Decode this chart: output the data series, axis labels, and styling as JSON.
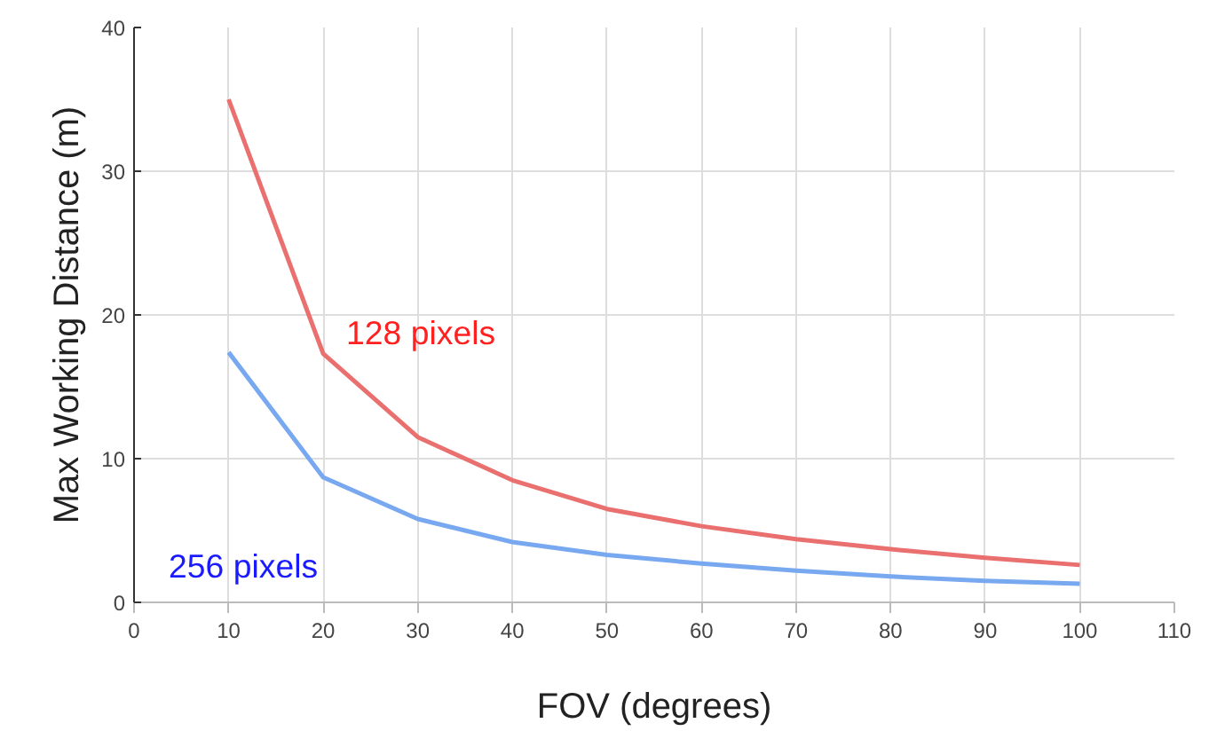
{
  "chart_data": {
    "type": "line",
    "xlabel": "FOV (degrees)",
    "ylabel": "Max Working Distance (m)",
    "x": [
      10,
      20,
      30,
      40,
      50,
      60,
      70,
      80,
      90,
      100
    ],
    "series": [
      {
        "name": "128 pixels",
        "color": "#ea7070",
        "values": [
          35.0,
          17.3,
          11.5,
          8.5,
          6.5,
          5.3,
          4.4,
          3.7,
          3.1,
          2.6
        ]
      },
      {
        "name": "256 pixels",
        "color": "#78a8f0",
        "values": [
          17.4,
          8.7,
          5.8,
          4.2,
          3.3,
          2.7,
          2.2,
          1.8,
          1.5,
          1.3
        ]
      }
    ],
    "xlim": [
      0,
      110
    ],
    "xticks": [
      0,
      10,
      20,
      30,
      40,
      50,
      60,
      70,
      80,
      90,
      100,
      110
    ],
    "ylim": [
      0,
      40
    ],
    "yticks": [
      0,
      10,
      20,
      30,
      40
    ],
    "grid": true,
    "marker": "none",
    "line_style": "solid"
  }
}
